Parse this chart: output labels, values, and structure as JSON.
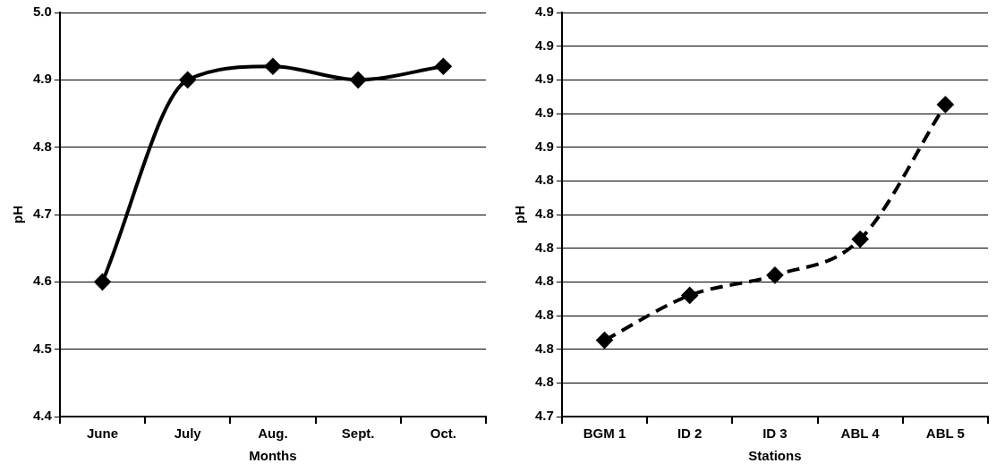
{
  "chart_data": [
    {
      "type": "line",
      "categories": [
        "June",
        "July",
        "Aug.",
        "Sept.",
        "Oct."
      ],
      "values": [
        4.6,
        4.9,
        4.92,
        4.9,
        4.92
      ],
      "color": "#000000",
      "xlabel": "Months",
      "ylabel": "pH",
      "ylim": [
        4.4,
        5.0
      ],
      "yticks": [
        4.4,
        4.5,
        4.6,
        4.7,
        4.8,
        4.9,
        {
          "value": 5,
          "label": "5.0"
        }
      ],
      "grid": "y",
      "marker": "diamond",
      "line_style": "solid"
    },
    {
      "type": "line",
      "categories": [
        "BGM 1",
        "ID 2",
        "ID 3",
        "ABL 4",
        "ABL 5"
      ],
      "values": [
        4.774,
        4.794,
        4.803,
        4.819,
        4.879
      ],
      "color": "#000000",
      "xlabel": "Stations",
      "ylabel": "pH",
      "ylim": [
        4.74,
        4.92
      ],
      "yticks": [
        {
          "value": 4.74,
          "label": "4.7"
        },
        {
          "value": 4.755,
          "label": "4.8"
        },
        {
          "value": 4.77,
          "label": "4.8"
        },
        {
          "value": 4.785,
          "label": "4.8"
        },
        {
          "value": 4.8,
          "label": "4.8"
        },
        {
          "value": 4.815,
          "label": "4.8"
        },
        {
          "value": 4.83,
          "label": "4.8"
        },
        {
          "value": 4.845,
          "label": "4.8"
        },
        {
          "value": 4.86,
          "label": "4.9"
        },
        {
          "value": 4.875,
          "label": "4.9"
        },
        {
          "value": 4.89,
          "label": "4.9"
        },
        {
          "value": 4.905,
          "label": "4.9"
        },
        {
          "value": 4.92,
          "label": "4.9"
        }
      ],
      "grid": "y",
      "marker": "diamond",
      "line_style": "dashed"
    }
  ]
}
